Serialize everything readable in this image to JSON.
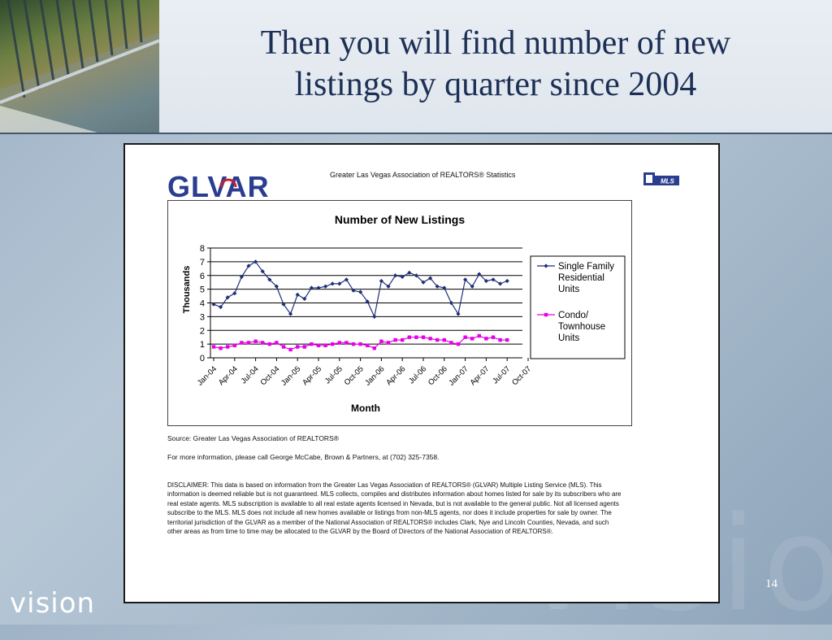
{
  "slide": {
    "title_line1": "Then you will find number of new",
    "title_line2": "listings by quarter since 2004",
    "footer_brand": "vision",
    "watermark": "vision",
    "page_number": "14"
  },
  "document": {
    "logo_text": "GLVAR",
    "stats_heading": "Greater Las Vegas Association of REALTORS® Statistics",
    "mls_logo_text": "MLS",
    "source": "Source: Greater Las Vegas Association of REALTORS®",
    "more_info": "For more information, please call George McCabe, Brown & Partners, at (702) 325-7358.",
    "disclaimer": "DISCLAIMER: This data is based on information from the Greater Las Vegas Association of REALTORS® (GLVAR) Multiple Listing Service (MLS). This information is deemed reliable but is not guaranteed. MLS collects, compiles and distributes information about homes listed for sale by its subscribers who are real estate agents. MLS subscription is available to all real estate agents licensed in Nevada, but is not available to the general public. Not all licensed agents subscribe to the MLS. MLS does not include all new homes available or listings from non-MLS agents, nor does it include properties for sale by owner. The territorial jurisdiction of the GLVAR as a member of the National Association of REALTORS® includes Clark, Nye and Lincoln Counties, Nevada, and such other areas as from time to time may be allocated to the GLVAR by the Board of Directors of the National Association of REALTORS®."
  },
  "colors": {
    "title": "#1c2f55",
    "series_sfr": "#1f2f7a",
    "series_condo": "#e600e6",
    "logo_blue": "#2a3d8f",
    "logo_red": "#c8202f"
  },
  "chart_data": {
    "type": "line",
    "title": "Number of New Listings",
    "xlabel": "Month",
    "ylabel": "Thousands",
    "ylim": [
      0,
      8
    ],
    "yticks": [
      "0",
      "1",
      "2",
      "3",
      "4",
      "5",
      "6",
      "7",
      "8"
    ],
    "xtick_labels": [
      "Jan-04",
      "Apr-04",
      "Jul-04",
      "Oct-04",
      "Jan-05",
      "Apr-05",
      "Jul-05",
      "Oct-05",
      "Jan-06",
      "Apr-06",
      "Jul-06",
      "Oct-06",
      "Jan-07",
      "Apr-07",
      "Jul-07",
      "Oct-07"
    ],
    "grid": "horizontal",
    "legend_position": "right",
    "series": [
      {
        "name": "Single Family Residential Units",
        "legend_lines": [
          "Single Family",
          "Residential",
          "Units"
        ],
        "marker": "diamond",
        "values": [
          3.9,
          3.7,
          4.4,
          4.7,
          5.9,
          6.7,
          7.0,
          6.3,
          5.7,
          5.2,
          3.9,
          3.2,
          4.6,
          4.3,
          5.1,
          5.1,
          5.2,
          5.4,
          5.4,
          5.7,
          4.9,
          4.8,
          4.1,
          3.0,
          5.6,
          5.2,
          6.0,
          5.9,
          6.2,
          6.0,
          5.5,
          5.8,
          5.2,
          5.1,
          4.0,
          3.2,
          5.7,
          5.2,
          6.1,
          5.6,
          5.7,
          5.4,
          5.6
        ]
      },
      {
        "name": "Condo/ Townhouse Units",
        "legend_lines": [
          "Condo/",
          "Townhouse",
          "Units"
        ],
        "marker": "square",
        "values": [
          0.8,
          0.7,
          0.8,
          0.9,
          1.1,
          1.1,
          1.2,
          1.1,
          1.0,
          1.1,
          0.8,
          0.6,
          0.8,
          0.8,
          1.0,
          0.9,
          0.9,
          1.0,
          1.1,
          1.1,
          1.0,
          1.0,
          0.9,
          0.7,
          1.2,
          1.1,
          1.3,
          1.3,
          1.5,
          1.5,
          1.5,
          1.4,
          1.3,
          1.3,
          1.1,
          1.0,
          1.5,
          1.4,
          1.6,
          1.4,
          1.5,
          1.3,
          1.3
        ]
      }
    ]
  }
}
